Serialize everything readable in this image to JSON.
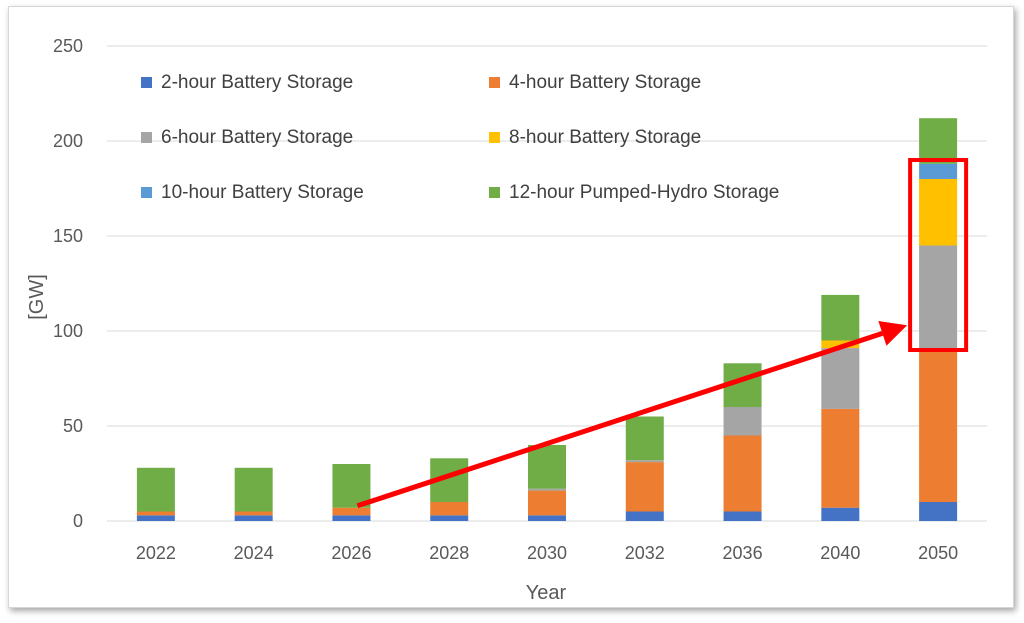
{
  "chart_data": {
    "type": "bar",
    "stacked": true,
    "title": "",
    "xlabel": "Year",
    "ylabel": "[GW]",
    "ylim": [
      0,
      250
    ],
    "yticks": [
      0,
      50,
      100,
      150,
      200,
      250
    ],
    "grid": true,
    "legend_position": "top-left",
    "categories": [
      "2022",
      "2024",
      "2026",
      "2028",
      "2030",
      "2032",
      "2036",
      "2040",
      "2050"
    ],
    "series": [
      {
        "name": "2-hour Battery Storage",
        "color": "#4472C4",
        "values": [
          3,
          3,
          3,
          3,
          3,
          5,
          5,
          7,
          10
        ]
      },
      {
        "name": "4-hour Battery Storage",
        "color": "#ED7D31",
        "values": [
          2,
          2,
          4,
          7,
          13,
          26,
          40,
          52,
          80
        ]
      },
      {
        "name": "6-hour Battery Storage",
        "color": "#A5A5A5",
        "values": [
          0,
          0,
          0,
          0,
          1,
          1,
          15,
          32,
          55
        ]
      },
      {
        "name": "8-hour Battery Storage",
        "color": "#FFC000",
        "values": [
          0,
          0,
          0,
          0,
          0,
          0,
          0,
          4,
          35
        ]
      },
      {
        "name": "10-hour Battery Storage",
        "color": "#5B9BD5",
        "values": [
          0,
          0,
          0,
          0,
          0,
          0,
          0,
          0,
          8
        ]
      },
      {
        "name": "12-hour Pumped-Hydro Storage",
        "color": "#70AD47",
        "values": [
          23,
          23,
          23,
          23,
          23,
          23,
          23,
          24,
          24
        ]
      }
    ],
    "annotations": {
      "highlight_box": {
        "category": "2050",
        "y_from": 90,
        "y_to": 190,
        "color": "#FF0000"
      },
      "arrow": {
        "from_category": "2026",
        "from_value": 8,
        "to_category": "2050",
        "to_value": 103,
        "color": "#FF0000"
      }
    }
  },
  "colors": {
    "gridline": "#D9D9D9",
    "axis_text": "#595959"
  }
}
